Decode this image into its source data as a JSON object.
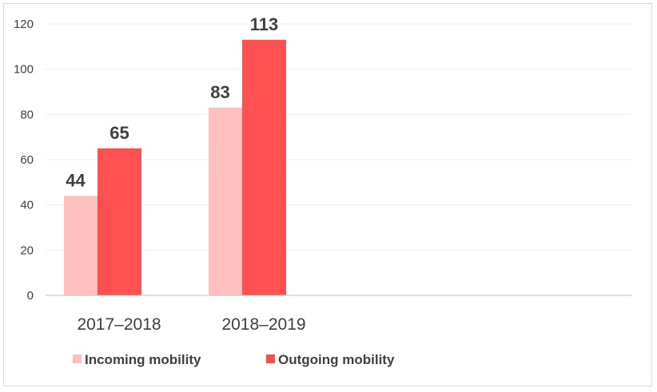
{
  "chart_data": {
    "type": "bar",
    "categories": [
      "2017–2018",
      "2018–2019"
    ],
    "series": [
      {
        "name": "Incoming mobility",
        "values": [
          44,
          83
        ],
        "color": "#ffbfbf"
      },
      {
        "name": "Outgoing mobility",
        "values": [
          65,
          113
        ],
        "color": "#ff4b4b"
      }
    ],
    "title": "",
    "xlabel": "",
    "ylabel": "",
    "ylim": [
      0,
      120
    ],
    "yticks": [
      "0",
      "20",
      "40",
      "60",
      "80",
      "100",
      "120"
    ],
    "grid": true,
    "legend_position": "bottom-left",
    "data_labels": true
  }
}
